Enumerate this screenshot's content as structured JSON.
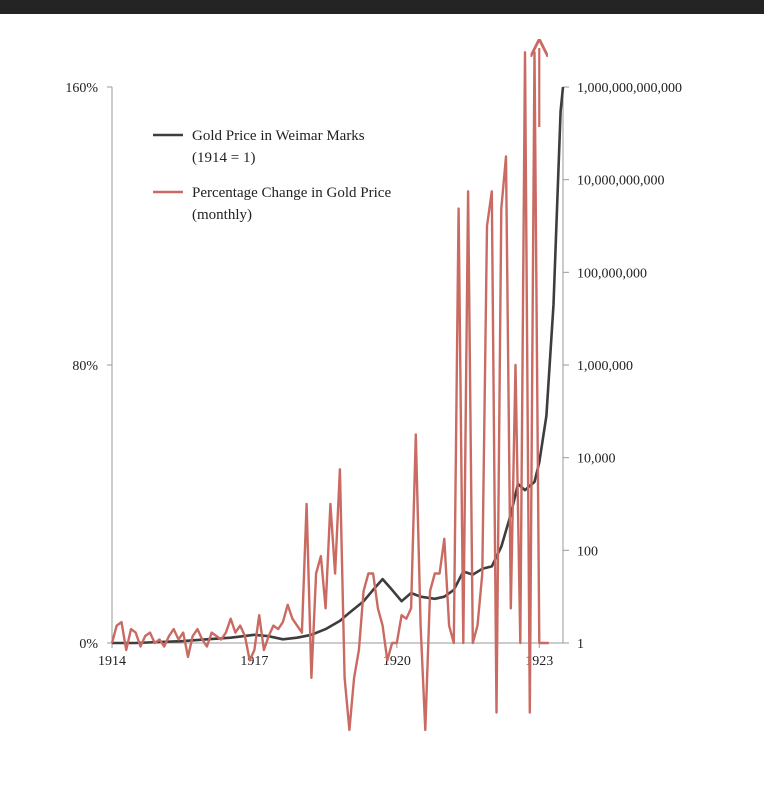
{
  "chart_data": {
    "type": "line",
    "title": "",
    "xlabel": "",
    "ylabel_left": "",
    "ylabel_right": "",
    "x_ticks": [
      "1914",
      "1917",
      "1920",
      "1923"
    ],
    "x_range": [
      1914,
      1923.5
    ],
    "left_axis": {
      "range": [
        0,
        160
      ],
      "ticks": [
        {
          "value": 0,
          "label": "0%"
        },
        {
          "value": 80,
          "label": "80%"
        },
        {
          "value": 160,
          "label": "160%"
        }
      ]
    },
    "right_axis": {
      "scale": "log",
      "range": [
        1,
        1000000000000
      ],
      "ticks": [
        {
          "value": 1,
          "label": "1"
        },
        {
          "value": 100,
          "label": "100"
        },
        {
          "value": 10000,
          "label": "10,000"
        },
        {
          "value": 1000000,
          "label": "1,000,000"
        },
        {
          "value": 100000000,
          "label": "100,000,000"
        },
        {
          "value": 10000000000,
          "label": "10,000,000,000"
        },
        {
          "value": 1000000000000,
          "label": "1,000,000,000,000"
        }
      ]
    },
    "grid": false,
    "legend_position": "top-left",
    "series": [
      {
        "name": "Gold Price in Weimar Marks (1914 = 1)",
        "legend_lines": [
          "Gold Price in Weimar Marks",
          "(1914 = 1)"
        ],
        "axis": "right",
        "color": "#3d3d3d",
        "x": [
          1914.0,
          1914.5,
          1915.0,
          1915.5,
          1916.0,
          1916.5,
          1917.0,
          1917.3,
          1917.6,
          1917.9,
          1918.2,
          1918.5,
          1918.8,
          1919.0,
          1919.3,
          1919.5,
          1919.7,
          1919.9,
          1920.1,
          1920.3,
          1920.5,
          1920.8,
          1921.0,
          1921.2,
          1921.4,
          1921.6,
          1921.8,
          1922.0,
          1922.2,
          1922.4,
          1922.55,
          1922.7,
          1922.9,
          1923.0,
          1923.15,
          1923.3,
          1923.45,
          1923.5
        ],
        "values": [
          1,
          1,
          1.05,
          1.1,
          1.2,
          1.3,
          1.5,
          1.4,
          1.2,
          1.3,
          1.5,
          2.0,
          3.0,
          4.5,
          8,
          14,
          24,
          14,
          8,
          12,
          10,
          9,
          10,
          14,
          35,
          30,
          40,
          45,
          120,
          600,
          2700,
          2000,
          3000,
          8000,
          80000,
          20000000,
          300000000000,
          1000000000000
        ]
      },
      {
        "name": "Percentage Change in Gold Price (monthly)",
        "legend_lines": [
          "Percentage Change in Gold Price",
          "(monthly)"
        ],
        "axis": "left",
        "color": "#c96b63",
        "x": [
          1914.0,
          1914.1,
          1914.2,
          1914.3,
          1914.4,
          1914.5,
          1914.6,
          1914.7,
          1914.8,
          1914.9,
          1915.0,
          1915.1,
          1915.2,
          1915.3,
          1915.4,
          1915.5,
          1915.6,
          1915.7,
          1915.8,
          1915.9,
          1916.0,
          1916.1,
          1916.2,
          1916.3,
          1916.4,
          1916.5,
          1916.6,
          1916.7,
          1916.8,
          1916.9,
          1917.0,
          1917.1,
          1917.2,
          1917.3,
          1917.4,
          1917.5,
          1917.6,
          1917.7,
          1917.8,
          1917.9,
          1918.0,
          1918.1,
          1918.2,
          1918.3,
          1918.4,
          1918.5,
          1918.6,
          1918.7,
          1918.8,
          1918.9,
          1919.0,
          1919.1,
          1919.2,
          1919.3,
          1919.4,
          1919.5,
          1919.6,
          1919.7,
          1919.8,
          1919.9,
          1920.0,
          1920.1,
          1920.2,
          1920.3,
          1920.4,
          1920.5,
          1920.6,
          1920.7,
          1920.8,
          1920.9,
          1921.0,
          1921.1,
          1921.2,
          1921.3,
          1921.4,
          1921.5,
          1921.6,
          1921.7,
          1921.8,
          1921.9,
          1922.0,
          1922.1,
          1922.2,
          1922.3,
          1922.4,
          1922.5,
          1922.6,
          1922.7,
          1922.8,
          1922.9,
          1923.0,
          1923.1,
          1923.2
        ],
        "values": [
          0,
          5,
          6,
          -2,
          4,
          3,
          -1,
          2,
          3,
          0,
          1,
          -1,
          2,
          4,
          1,
          3,
          -4,
          2,
          4,
          1,
          -1,
          3,
          2,
          1,
          3,
          7,
          3,
          5,
          2,
          -5,
          -2,
          8,
          -2,
          2,
          5,
          4,
          6,
          11,
          7,
          5,
          3,
          40,
          -10,
          20,
          25,
          10,
          40,
          20,
          50,
          -10,
          -25,
          -10,
          -2,
          15,
          20,
          20,
          10,
          5,
          -5,
          0,
          0,
          8,
          7,
          10,
          60,
          5,
          -25,
          15,
          20,
          20,
          30,
          5,
          0,
          125,
          0,
          130,
          0,
          5,
          20,
          120,
          130,
          -20,
          125,
          140,
          10,
          80,
          0,
          170,
          -20,
          170,
          0,
          0,
          0
        ],
        "clipped_peak": {
          "x": 1923.0,
          "value": 170
        }
      }
    ]
  }
}
